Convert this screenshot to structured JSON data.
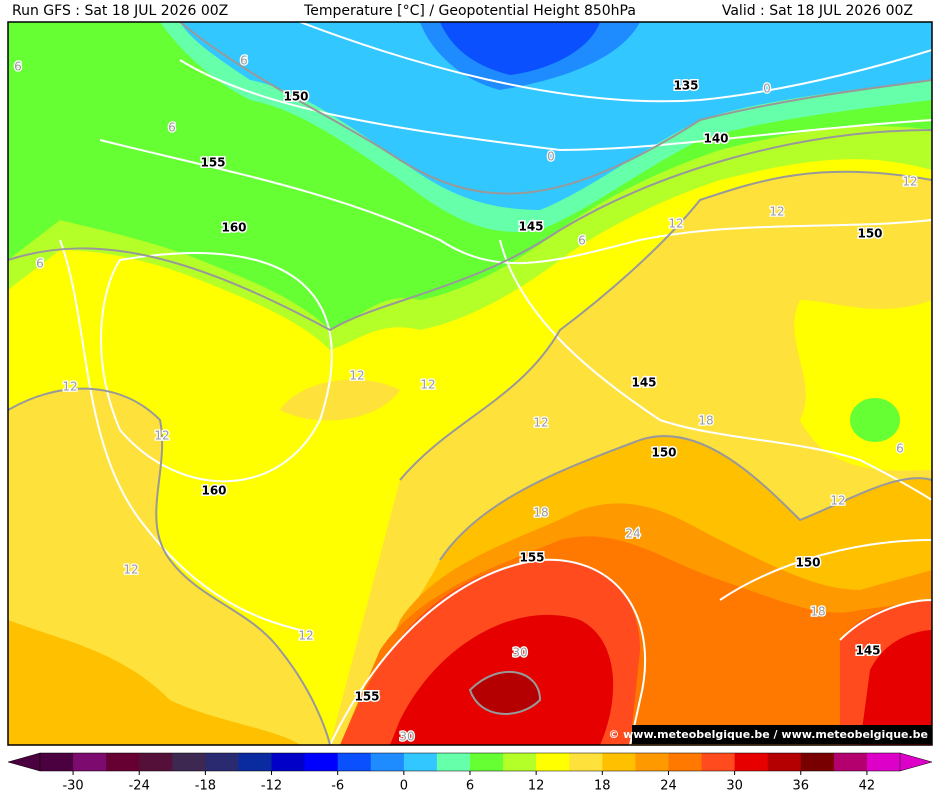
{
  "header": {
    "run": "Run GFS : Sat 18 JUL 2026 00Z",
    "title": "Temperature [°C] / Geopotential Height 850hPa",
    "valid": "Valid : Sat 18 JUL 2026 00Z"
  },
  "height_labels": [
    150,
    135,
    140,
    155,
    160,
    145,
    150,
    145,
    150,
    160,
    155,
    150,
    145,
    155
  ],
  "temperature_labels": [
    6,
    6,
    6,
    0,
    0,
    6,
    6,
    12,
    12,
    12,
    12,
    12,
    12,
    12,
    12,
    18,
    6,
    12,
    18,
    24,
    12,
    18,
    12,
    30,
    30
  ],
  "colorbar": {
    "ticks": [
      -30,
      -24,
      -18,
      -12,
      -6,
      0,
      6,
      12,
      18,
      24,
      30,
      36,
      42
    ],
    "colors": [
      "#4b0040",
      "#7d0a6e",
      "#660033",
      "#55103a",
      "#3c2850",
      "#2a2a70",
      "#0a2aa0",
      "#0000c8",
      "#0000ff",
      "#0a50ff",
      "#1e8cff",
      "#32c8ff",
      "#66ffaa",
      "#66ff33",
      "#b4ff28",
      "#ffff00",
      "#ffe13c",
      "#ffc000",
      "#ff9900",
      "#ff7800",
      "#ff4b1e",
      "#e60000",
      "#b40000",
      "#780000",
      "#b4006e",
      "#dc00c8"
    ]
  },
  "watermark": "© www.meteobelgique.be / www.meteobelgique.be"
}
